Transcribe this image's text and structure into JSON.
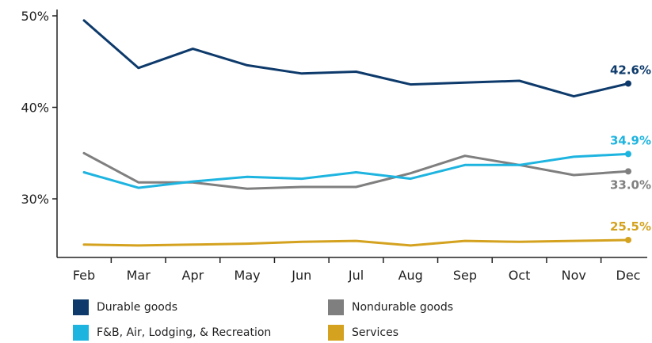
{
  "chart_data": {
    "type": "line",
    "categories": [
      "Feb",
      "Mar",
      "Apr",
      "May",
      "Jun",
      "Jul",
      "Aug",
      "Sep",
      "Oct",
      "Nov",
      "Dec"
    ],
    "y_ticks": [
      {
        "value": 30,
        "label": "30%"
      },
      {
        "value": 40,
        "label": "40%"
      },
      {
        "value": 50,
        "label": "50%"
      }
    ],
    "ylim": [
      24,
      51
    ],
    "grid": false,
    "legend_position": "bottom",
    "series": [
      {
        "name": "Durable goods",
        "key": "durable",
        "color": "#0d3a6b",
        "values": [
          49.5,
          44.3,
          46.4,
          44.6,
          43.7,
          43.9,
          42.5,
          42.7,
          42.9,
          41.2,
          42.6
        ],
        "end_label": "42.6%"
      },
      {
        "name": "Nondurable goods",
        "key": "nondurable",
        "color": "#7f7f7f",
        "values": [
          35.0,
          31.8,
          31.8,
          31.1,
          31.3,
          31.3,
          32.8,
          34.7,
          33.7,
          32.6,
          33.0
        ],
        "end_label": "33.0%"
      },
      {
        "name": "F&B, Air, Lodging, & Recreation",
        "key": "fb",
        "color": "#1eb4e0",
        "values": [
          32.9,
          31.2,
          31.9,
          32.4,
          32.2,
          32.9,
          32.2,
          33.7,
          33.7,
          34.6,
          34.9
        ],
        "end_label": "34.9%"
      },
      {
        "name": "Services",
        "key": "services",
        "color": "#d4a21f",
        "values": [
          25.0,
          24.9,
          25.0,
          25.1,
          25.3,
          25.4,
          24.9,
          25.4,
          25.3,
          25.4,
          25.5
        ],
        "end_label": "25.5%"
      }
    ]
  },
  "legend": {
    "durable": "Durable goods",
    "nondurable": "Nondurable goods",
    "fb": "F&B, Air, Lodging, & Recreation",
    "services": "Services"
  },
  "colors": {
    "durable": "#0d3a6b",
    "nondurable": "#7f7f7f",
    "fb": "#1eb4e0",
    "services": "#d4a21f",
    "axis": "#222222"
  }
}
